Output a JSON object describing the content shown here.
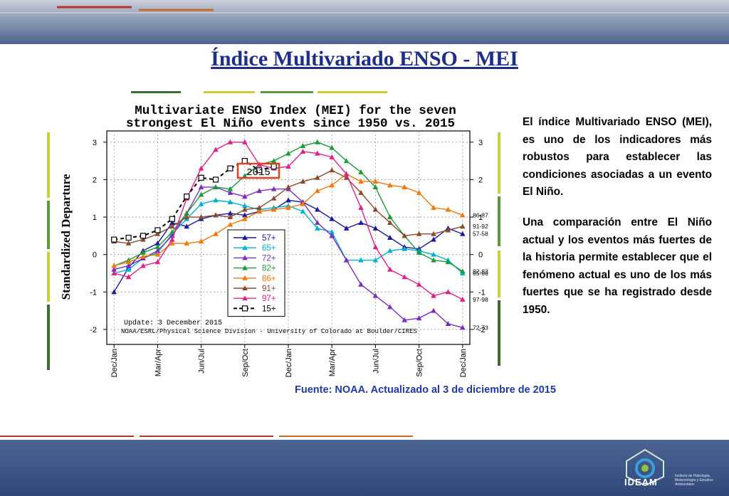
{
  "slide": {
    "title": "Índice Multivariado ENSO - MEI",
    "paragraph1": "El índice Multivariado ENSO (MEI), es uno de los indicadores más robustos para establecer las condiciones asociadas a un evento El Niño.",
    "paragraph2": "Una comparación entre El Niño actual y los eventos más fuertes de la historia permite establecer que el fenómeno actual es uno de los más fuertes que se ha registrado desde 1950.",
    "source": "Fuente: NOAA. Actualizado al 3 de diciembre de 2015",
    "logo_text": "IDEAM",
    "logo_subtext": "Instituto de Hidrología, Meteorología y Estudios Ambientales"
  },
  "colors": {
    "title_blue": "#1e2f8a",
    "source_blue": "#1e3aa0",
    "band_blue": "#4d6391",
    "accent_green": "#3b6e2f",
    "accent_yellow": "#c9cf3a",
    "accent_red": "#b3362c"
  },
  "chart_data": {
    "type": "line",
    "title_line1": "Multivariate ENSO Index (MEI) for the seven",
    "title_line2": "strongest El Niño events since 1950 vs. 2015",
    "ylabel": "Standardized Departure",
    "xlabel": "",
    "ylim": [
      -2.4,
      3.3
    ],
    "yticks": [
      -2,
      -1,
      0,
      1,
      2,
      3
    ],
    "x_tick_labels": [
      "Dec/Jan",
      "Mar/Apr",
      "Jun/Jul",
      "Sep/Oct",
      "Dec/Jan",
      "Mar/Apr",
      "Jun/Jul",
      "Sep/Oct",
      "Dec/Jan"
    ],
    "x_tick_positions": [
      0,
      3,
      6,
      9,
      12,
      15,
      18,
      21,
      24
    ],
    "xlim": [
      -0.5,
      24.5
    ],
    "grid": true,
    "legend_position": "center-left",
    "update_note": "Update: 3 December 2015",
    "credit": "NOAA/ESRL/Physical Science Division - University of Colorado at Boulder/CIRES",
    "highlight_label": "2015",
    "series": [
      {
        "name": "57+",
        "end_label": "57-58",
        "color": "#1a1aa0",
        "marker": "triangle",
        "dashed": false,
        "values": [
          -1.0,
          -0.35,
          0.1,
          0.3,
          0.85,
          0.75,
          0.95,
          1.05,
          1.1,
          1.05,
          1.15,
          1.2,
          1.45,
          1.4,
          1.2,
          0.95,
          0.7,
          0.85,
          0.7,
          0.45,
          0.2,
          0.15,
          0.4,
          0.7,
          0.55
        ]
      },
      {
        "name": "65+",
        "end_label": "65-66",
        "color": "#00b0d0",
        "marker": "triangle",
        "dashed": false,
        "values": [
          -0.5,
          -0.4,
          -0.1,
          0.05,
          0.55,
          0.95,
          1.35,
          1.45,
          1.4,
          1.3,
          1.2,
          1.25,
          1.3,
          1.15,
          0.7,
          0.6,
          -0.15,
          -0.15,
          -0.15,
          0.1,
          0.15,
          0.1,
          0.0,
          -0.15,
          -0.5
        ]
      },
      {
        "name": "72+",
        "end_label": "72-73",
        "color": "#7b2fbf",
        "marker": "triangle",
        "dashed": false,
        "values": [
          -0.4,
          -0.3,
          -0.1,
          0.1,
          0.5,
          1.1,
          1.8,
          1.8,
          1.65,
          1.55,
          1.7,
          1.75,
          1.75,
          1.4,
          0.85,
          0.5,
          -0.15,
          -0.8,
          -1.1,
          -1.4,
          -1.75,
          -1.7,
          -1.5,
          -1.85,
          -1.95
        ]
      },
      {
        "name": "82+",
        "end_label": "82-83",
        "color": "#1e9a3c",
        "marker": "triangle",
        "dashed": false,
        "values": [
          -0.3,
          -0.15,
          0.05,
          0.2,
          0.6,
          1.1,
          1.6,
          1.8,
          1.75,
          2.1,
          2.4,
          2.5,
          2.7,
          2.9,
          3.0,
          2.85,
          2.5,
          2.2,
          1.8,
          1.0,
          0.5,
          0.05,
          -0.15,
          -0.2,
          -0.45
        ]
      },
      {
        "name": "86+",
        "end_label": "86-87",
        "color": "#f07a10",
        "marker": "triangle",
        "dashed": false,
        "values": [
          -0.3,
          -0.2,
          -0.05,
          0.0,
          0.3,
          0.3,
          0.35,
          0.55,
          0.8,
          0.95,
          1.15,
          1.2,
          1.25,
          1.35,
          1.7,
          1.85,
          2.15,
          1.95,
          1.95,
          1.85,
          1.8,
          1.65,
          1.25,
          1.2,
          1.05
        ]
      },
      {
        "name": "91+",
        "end_label": "91-92",
        "color": "#8b4a30",
        "marker": "triangle",
        "dashed": false,
        "values": [
          0.35,
          0.3,
          0.4,
          0.55,
          0.75,
          1.0,
          1.0,
          1.05,
          1.0,
          1.2,
          1.25,
          1.5,
          1.8,
          1.95,
          2.05,
          2.25,
          2.05,
          1.65,
          1.2,
          0.85,
          0.5,
          0.55,
          0.55,
          0.65,
          0.75
        ]
      },
      {
        "name": "97+",
        "end_label": "97-98",
        "color": "#e0208a",
        "marker": "triangle",
        "dashed": false,
        "values": [
          -0.5,
          -0.6,
          -0.3,
          -0.2,
          0.4,
          1.5,
          2.3,
          2.8,
          3.0,
          3.0,
          2.4,
          2.3,
          2.35,
          2.75,
          2.7,
          2.6,
          2.15,
          1.25,
          0.2,
          -0.4,
          -0.6,
          -0.8,
          -1.1,
          -1.0,
          -1.2
        ]
      },
      {
        "name": "15+",
        "end_label": "",
        "color": "#000000",
        "marker": "square",
        "dashed": true,
        "values": [
          0.4,
          0.45,
          0.5,
          0.65,
          0.95,
          1.55,
          2.05,
          2.0,
          2.3,
          2.5,
          2.25,
          2.35,
          null,
          null,
          null,
          null,
          null,
          null,
          null,
          null,
          null,
          null,
          null,
          null,
          null
        ]
      }
    ]
  }
}
